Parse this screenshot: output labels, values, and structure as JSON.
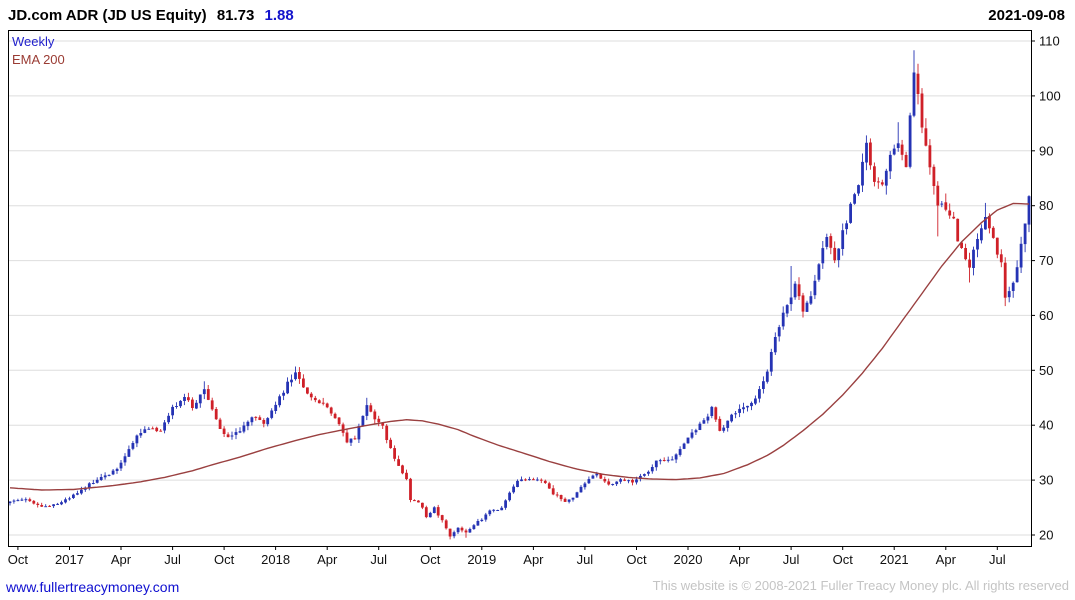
{
  "header": {
    "title": "JD.com ADR (JD US Equity)",
    "last_price": "81.73",
    "change": "1.88",
    "date": "2021-09-08"
  },
  "legend": {
    "interval": "Weekly",
    "overlay": "EMA 200"
  },
  "footer": {
    "link": "www.fullertreacymoney.com",
    "copyright": "This website is © 2008-2021 Fuller Treacy Money plc. All rights reserved"
  },
  "chart_data": {
    "type": "candlestick",
    "title": "JD.com ADR (JD US Equity)",
    "interval": "Weekly",
    "overlay": "EMA 200",
    "last_close": 81.73,
    "ylim": [
      18,
      112
    ],
    "yticks": [
      20,
      30,
      40,
      50,
      60,
      70,
      80,
      90,
      100,
      110
    ],
    "weeks_total": 258,
    "x_ticks": [
      [
        "Oct",
        0
      ],
      [
        "2017",
        13
      ],
      [
        "Apr",
        26
      ],
      [
        "Jul",
        39
      ],
      [
        "Oct",
        52
      ],
      [
        "2018",
        65
      ],
      [
        "Apr",
        78
      ],
      [
        "Jul",
        91
      ],
      [
        "Oct",
        104
      ],
      [
        "2019",
        117
      ],
      [
        "Apr",
        130
      ],
      [
        "Jul",
        143
      ],
      [
        "Oct",
        156
      ],
      [
        "2020",
        169
      ],
      [
        "Apr",
        182
      ],
      [
        "Jul",
        195
      ],
      [
        "Oct",
        208
      ],
      [
        "2021",
        221
      ],
      [
        "Apr",
        234
      ],
      [
        "Jul",
        247
      ]
    ],
    "price_anchors": [
      [
        0,
        26.0
      ],
      [
        3,
        26.6
      ],
      [
        6,
        25.8
      ],
      [
        9,
        25.2
      ],
      [
        13,
        25.8
      ],
      [
        16,
        27.2
      ],
      [
        19,
        28.8
      ],
      [
        22,
        30.2
      ],
      [
        26,
        31.4
      ],
      [
        29,
        34.2
      ],
      [
        32,
        37.8
      ],
      [
        35,
        39.5
      ],
      [
        38,
        38.8
      ],
      [
        41,
        43.2
      ],
      [
        44,
        45.2
      ],
      [
        46,
        43.5
      ],
      [
        49,
        46.5
      ],
      [
        51,
        42.5
      ],
      [
        53,
        39.0
      ],
      [
        56,
        37.8
      ],
      [
        59,
        39.8
      ],
      [
        62,
        41.8
      ],
      [
        64,
        40.2
      ],
      [
        67,
        43.5
      ],
      [
        70,
        47.5
      ],
      [
        72,
        50.0
      ],
      [
        75,
        46.0
      ],
      [
        78,
        44.0
      ],
      [
        80,
        43.0
      ],
      [
        83,
        40.0
      ],
      [
        85,
        37.0
      ],
      [
        87,
        37.5
      ],
      [
        90,
        43.5
      ],
      [
        92,
        41.0
      ],
      [
        94,
        39.5
      ],
      [
        97,
        34.0
      ],
      [
        99,
        31.5
      ],
      [
        100,
        30.5
      ],
      [
        101,
        26.5
      ],
      [
        103,
        26.0
      ],
      [
        105,
        23.5
      ],
      [
        107,
        24.8
      ],
      [
        109,
        22.5
      ],
      [
        111,
        19.8
      ],
      [
        113,
        21.5
      ],
      [
        115,
        20.5
      ],
      [
        117,
        21.8
      ],
      [
        119,
        23.0
      ],
      [
        121,
        24.5
      ],
      [
        124,
        25.0
      ],
      [
        126,
        27.5
      ],
      [
        128,
        29.8
      ],
      [
        131,
        30.3
      ],
      [
        134,
        30.0
      ],
      [
        137,
        27.5
      ],
      [
        140,
        26.3
      ],
      [
        142,
        27.0
      ],
      [
        145,
        29.5
      ],
      [
        148,
        31.2
      ],
      [
        151,
        28.9
      ],
      [
        154,
        30.2
      ],
      [
        157,
        29.8
      ],
      [
        160,
        31.0
      ],
      [
        163,
        33.2
      ],
      [
        166,
        33.4
      ],
      [
        169,
        35.5
      ],
      [
        172,
        38.5
      ],
      [
        175,
        41.0
      ],
      [
        177,
        43.0
      ],
      [
        179,
        39.0
      ],
      [
        182,
        41.5
      ],
      [
        185,
        43.5
      ],
      [
        188,
        45.0
      ],
      [
        191,
        50.0
      ],
      [
        193,
        56.5
      ],
      [
        195,
        60.0
      ],
      [
        197,
        63.5
      ],
      [
        198,
        65.5
      ],
      [
        200,
        60.5
      ],
      [
        202,
        64.0
      ],
      [
        204,
        69.0
      ],
      [
        206,
        74.0
      ],
      [
        208,
        70.5
      ],
      [
        210,
        75.0
      ],
      [
        212,
        79.5
      ],
      [
        214,
        84.0
      ],
      [
        216,
        90.5
      ],
      [
        218,
        85.0
      ],
      [
        220,
        84.5
      ],
      [
        222,
        88.5
      ],
      [
        224,
        92.0
      ],
      [
        226,
        88.0
      ],
      [
        227,
        96.0
      ],
      [
        228,
        104.5
      ],
      [
        230,
        94.5
      ],
      [
        232,
        87.0
      ],
      [
        234,
        80.5
      ],
      [
        236,
        79.5
      ],
      [
        238,
        77.0
      ],
      [
        240,
        71.5
      ],
      [
        242,
        68.5
      ],
      [
        244,
        74.5
      ],
      [
        246,
        78.0
      ],
      [
        248,
        74.5
      ],
      [
        250,
        69.0
      ],
      [
        251,
        63.0
      ],
      [
        253,
        66.5
      ],
      [
        255,
        72.5
      ],
      [
        256,
        77.0
      ],
      [
        257,
        81.73
      ]
    ],
    "ema_anchors": [
      [
        0,
        28.6
      ],
      [
        8,
        28.2
      ],
      [
        16,
        28.3
      ],
      [
        26,
        29.0
      ],
      [
        33,
        29.7
      ],
      [
        39,
        30.5
      ],
      [
        46,
        31.7
      ],
      [
        52,
        33.0
      ],
      [
        58,
        34.2
      ],
      [
        65,
        35.8
      ],
      [
        72,
        37.2
      ],
      [
        78,
        38.3
      ],
      [
        85,
        39.3
      ],
      [
        91,
        40.1
      ],
      [
        96,
        40.7
      ],
      [
        100,
        41.0
      ],
      [
        104,
        40.8
      ],
      [
        108,
        40.2
      ],
      [
        113,
        39.2
      ],
      [
        117,
        38.0
      ],
      [
        123,
        36.4
      ],
      [
        130,
        34.8
      ],
      [
        136,
        33.4
      ],
      [
        143,
        32.0
      ],
      [
        150,
        31.0
      ],
      [
        156,
        30.5
      ],
      [
        162,
        30.2
      ],
      [
        168,
        30.1
      ],
      [
        174,
        30.4
      ],
      [
        180,
        31.2
      ],
      [
        186,
        32.8
      ],
      [
        191,
        34.5
      ],
      [
        195,
        36.3
      ],
      [
        200,
        39.0
      ],
      [
        205,
        42.0
      ],
      [
        210,
        45.5
      ],
      [
        215,
        49.5
      ],
      [
        220,
        54.0
      ],
      [
        225,
        59.0
      ],
      [
        230,
        64.0
      ],
      [
        235,
        69.0
      ],
      [
        240,
        73.4
      ],
      [
        245,
        76.9
      ],
      [
        249,
        79.2
      ],
      [
        253,
        80.4
      ],
      [
        257,
        80.3
      ]
    ],
    "extreme_wicks": {
      "49": {
        "high": 48.0
      },
      "72": {
        "high": 50.7
      },
      "90": {
        "high": 45.0
      },
      "111": {
        "low": 19.2
      },
      "115": {
        "low": 19.5
      },
      "197": {
        "high": 69.0
      },
      "216": {
        "high": 92.8
      },
      "224": {
        "high": 95.2
      },
      "228": {
        "high": 108.3
      },
      "234": {
        "low": 74.4
      },
      "242": {
        "low": 66.0
      },
      "246": {
        "high": 80.5
      },
      "251": {
        "low": 61.7
      }
    },
    "up_color": "#2533b4",
    "down_color": "#cf2028",
    "ema_color": "#9a4040",
    "grid_color": "#dedede",
    "frame_color": "#000000",
    "axis_label_color": "#111111",
    "noise_seed": 1234567
  }
}
